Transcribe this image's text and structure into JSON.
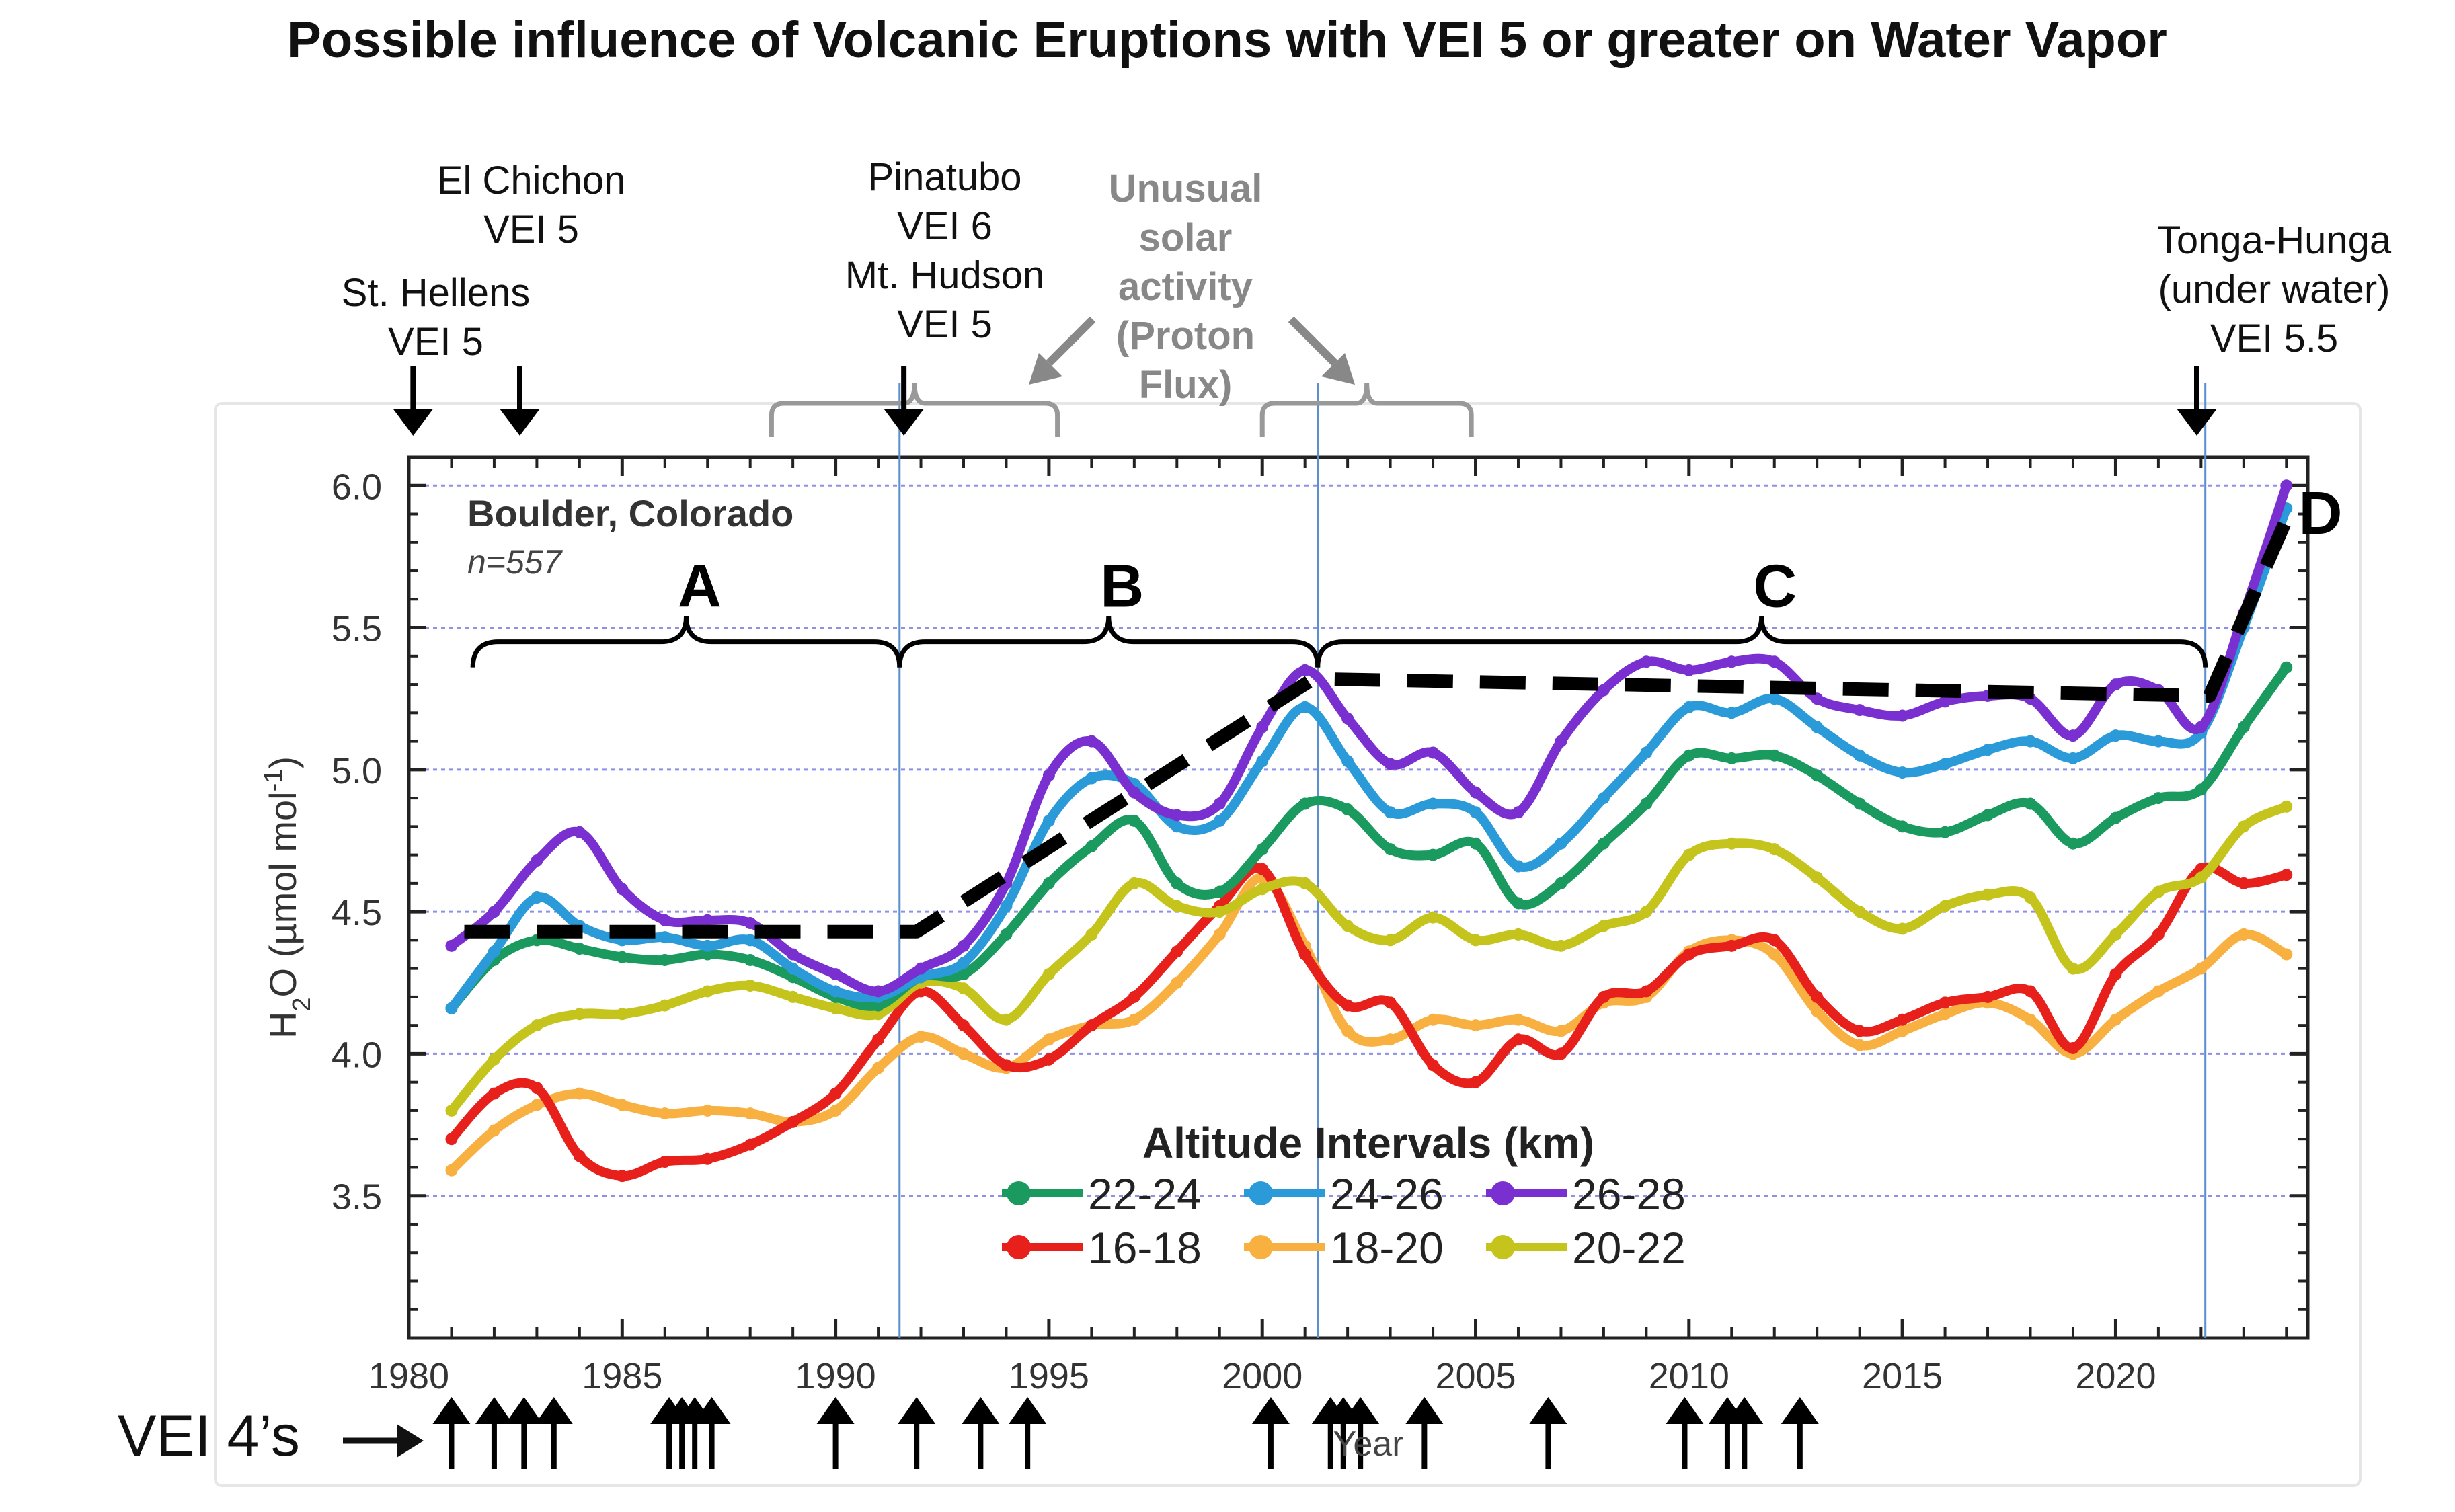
{
  "chart_data": {
    "type": "line",
    "title": "Possible influence of Volcanic Eruptions with VEI 5 or greater on Water Vapor",
    "station": "Boulder, Colorado",
    "n_label": "n=557",
    "xlabel": "Year",
    "ylabel_main": "H",
    "ylabel_sub": "2",
    "ylabel_rest": "O (µmol mol",
    "ylabel_sup": "-1",
    "ylabel_end": ")",
    "xlim": [
      1980,
      2024.5
    ],
    "ylim": [
      3.0,
      6.1
    ],
    "xticks": [
      1980,
      1985,
      1990,
      1995,
      2000,
      2005,
      2010,
      2015,
      2020
    ],
    "xtick_labels": [
      "1980",
      "1985",
      "1990",
      "1995",
      "2000",
      "2005",
      "2010",
      "2015",
      "2020"
    ],
    "yticks": [
      3.5,
      4.0,
      4.5,
      5.0,
      5.5,
      6.0
    ],
    "ytick_labels": [
      "3.5",
      "4.0",
      "4.5",
      "5.0",
      "5.5",
      "6.0"
    ],
    "legend_title": "Altitude Intervals (km)",
    "series": [
      {
        "name": "22-24",
        "color": "#1a9a5e",
        "x": [
          1981,
          1982,
          1983,
          1984,
          1985,
          1986,
          1987,
          1988,
          1989,
          1990,
          1991,
          1992,
          1993,
          1994,
          1995,
          1996,
          1997,
          1998,
          1999,
          2000,
          2001,
          2002,
          2003,
          2004,
          2005,
          2006,
          2007,
          2008,
          2009,
          2010,
          2011,
          2012,
          2013,
          2014,
          2015,
          2016,
          2017,
          2018,
          2019,
          2020,
          2021,
          2022,
          2023,
          2024
        ],
        "values": [
          4.16,
          4.33,
          4.4,
          4.37,
          4.34,
          4.33,
          4.35,
          4.33,
          4.27,
          4.2,
          4.17,
          4.27,
          4.28,
          4.42,
          4.6,
          4.73,
          4.82,
          4.6,
          4.57,
          4.72,
          4.88,
          4.86,
          4.72,
          4.7,
          4.74,
          4.53,
          4.6,
          4.74,
          4.88,
          5.05,
          5.04,
          5.05,
          4.98,
          4.88,
          4.8,
          4.78,
          4.84,
          4.88,
          4.74,
          4.83,
          4.9,
          4.93,
          5.15,
          5.36
        ]
      },
      {
        "name": "24-26",
        "color": "#2a9ad8",
        "x": [
          1981,
          1982,
          1983,
          1984,
          1985,
          1986,
          1987,
          1988,
          1989,
          1990,
          1991,
          1992,
          1993,
          1994,
          1995,
          1996,
          1997,
          1998,
          1999,
          2000,
          2001,
          2002,
          2003,
          2004,
          2005,
          2006,
          2007,
          2008,
          2009,
          2010,
          2011,
          2012,
          2013,
          2014,
          2015,
          2016,
          2017,
          2018,
          2019,
          2020,
          2021,
          2022,
          2023,
          2024
        ],
        "values": [
          4.16,
          4.36,
          4.55,
          4.45,
          4.4,
          4.41,
          4.38,
          4.4,
          4.3,
          4.22,
          4.2,
          4.27,
          4.32,
          4.52,
          4.82,
          4.97,
          4.95,
          4.8,
          4.82,
          5.03,
          5.22,
          5.03,
          4.85,
          4.88,
          4.85,
          4.66,
          4.74,
          4.9,
          5.06,
          5.22,
          5.2,
          5.25,
          5.15,
          5.05,
          4.99,
          5.02,
          5.07,
          5.1,
          5.04,
          5.12,
          5.1,
          5.13,
          5.5,
          5.92
        ]
      },
      {
        "name": "26-28",
        "color": "#7a2fd0",
        "x": [
          1981,
          1982,
          1983,
          1984,
          1985,
          1986,
          1987,
          1988,
          1989,
          1990,
          1991,
          1992,
          1993,
          1994,
          1995,
          1996,
          1997,
          1998,
          1999,
          2000,
          2001,
          2002,
          2003,
          2004,
          2005,
          2006,
          2007,
          2008,
          2009,
          2010,
          2011,
          2012,
          2013,
          2014,
          2015,
          2016,
          2017,
          2018,
          2019,
          2020,
          2021,
          2022,
          2023,
          2024
        ],
        "values": [
          4.38,
          4.5,
          4.68,
          4.78,
          4.58,
          4.47,
          4.47,
          4.46,
          4.35,
          4.28,
          4.22,
          4.3,
          4.38,
          4.6,
          4.98,
          5.1,
          4.92,
          4.84,
          4.88,
          5.15,
          5.35,
          5.18,
          5.02,
          5.06,
          4.92,
          4.85,
          5.1,
          5.28,
          5.38,
          5.35,
          5.38,
          5.38,
          5.25,
          5.21,
          5.19,
          5.24,
          5.26,
          5.25,
          5.12,
          5.3,
          5.28,
          5.15,
          5.55,
          6.0
        ]
      },
      {
        "name": "16-18",
        "color": "#e8201c",
        "x": [
          1981,
          1982,
          1983,
          1984,
          1985,
          1986,
          1987,
          1988,
          1989,
          1990,
          1991,
          1992,
          1993,
          1994,
          1995,
          1996,
          1997,
          1998,
          1999,
          2000,
          2001,
          2002,
          2003,
          2004,
          2005,
          2006,
          2007,
          2008,
          2009,
          2010,
          2011,
          2012,
          2013,
          2014,
          2015,
          2016,
          2017,
          2018,
          2019,
          2020,
          2021,
          2022,
          2023,
          2024
        ],
        "values": [
          3.7,
          3.86,
          3.88,
          3.64,
          3.57,
          3.62,
          3.63,
          3.68,
          3.76,
          3.86,
          4.05,
          4.22,
          4.1,
          3.96,
          3.98,
          4.1,
          4.2,
          4.36,
          4.52,
          4.65,
          4.35,
          4.17,
          4.18,
          3.96,
          3.9,
          4.05,
          4.0,
          4.2,
          4.22,
          4.35,
          4.38,
          4.4,
          4.2,
          4.08,
          4.12,
          4.18,
          4.2,
          4.22,
          4.02,
          4.28,
          4.42,
          4.65,
          4.6,
          4.63
        ]
      },
      {
        "name": "18-20",
        "color": "#f8b040",
        "x": [
          1981,
          1982,
          1983,
          1984,
          1985,
          1986,
          1987,
          1988,
          1989,
          1990,
          1991,
          1992,
          1993,
          1994,
          1995,
          1996,
          1997,
          1998,
          1999,
          2000,
          2001,
          2002,
          2003,
          2004,
          2005,
          2006,
          2007,
          2008,
          2009,
          2010,
          2011,
          2012,
          2013,
          2014,
          2015,
          2016,
          2017,
          2018,
          2019,
          2020,
          2021,
          2022,
          2023,
          2024
        ],
        "values": [
          3.59,
          3.73,
          3.82,
          3.86,
          3.82,
          3.79,
          3.8,
          3.79,
          3.76,
          3.8,
          3.95,
          4.06,
          4.0,
          3.95,
          4.05,
          4.1,
          4.12,
          4.25,
          4.42,
          4.62,
          4.38,
          4.08,
          4.05,
          4.12,
          4.1,
          4.12,
          4.08,
          4.18,
          4.2,
          4.36,
          4.4,
          4.35,
          4.15,
          4.03,
          4.08,
          4.14,
          4.18,
          4.12,
          4.0,
          4.12,
          4.22,
          4.3,
          4.42,
          4.35
        ]
      },
      {
        "name": "20-22",
        "color": "#c4c41c",
        "x": [
          1981,
          1982,
          1983,
          1984,
          1985,
          1986,
          1987,
          1988,
          1989,
          1990,
          1991,
          1992,
          1993,
          1994,
          1995,
          1996,
          1997,
          1998,
          1999,
          2000,
          2001,
          2002,
          2003,
          2004,
          2005,
          2006,
          2007,
          2008,
          2009,
          2010,
          2011,
          2012,
          2013,
          2014,
          2015,
          2016,
          2017,
          2018,
          2019,
          2020,
          2021,
          2022,
          2023,
          2024
        ],
        "values": [
          3.8,
          3.98,
          4.1,
          4.14,
          4.14,
          4.17,
          4.22,
          4.24,
          4.2,
          4.16,
          4.14,
          4.25,
          4.23,
          4.12,
          4.28,
          4.42,
          4.6,
          4.52,
          4.5,
          4.58,
          4.6,
          4.45,
          4.4,
          4.48,
          4.4,
          4.42,
          4.38,
          4.45,
          4.5,
          4.7,
          4.74,
          4.72,
          4.62,
          4.5,
          4.44,
          4.52,
          4.56,
          4.55,
          4.3,
          4.42,
          4.57,
          4.62,
          4.8,
          4.87
        ]
      }
    ],
    "trend_line": {
      "style": "dashed",
      "x": [
        1981.3,
        1991.9,
        2001.2,
        2022.2,
        2024.2
      ],
      "values": [
        4.43,
        4.43,
        5.32,
        5.26,
        5.95
      ]
    },
    "vertical_lines_x": [
      1991.5,
      2001.3,
      2022.1
    ],
    "periods": [
      {
        "label": "A",
        "x_start": 1981.5,
        "x_end": 1991.5,
        "y": 5.45
      },
      {
        "label": "B",
        "x_start": 1991.5,
        "x_end": 2001.3,
        "y": 5.45
      },
      {
        "label": "C",
        "x_start": 2001.3,
        "x_end": 2022.1,
        "y": 5.45
      },
      {
        "label": "D",
        "x": 2024.8,
        "y": 5.83
      }
    ],
    "vei5_eruptions": [
      {
        "lines": [
          "St. Hellens",
          "VEI 5"
        ],
        "x": 1980.1
      },
      {
        "lines": [
          "El Chichon",
          "VEI 5"
        ],
        "x": 1982.6
      },
      {
        "lines": [
          "Pinatubo",
          "VEI 6",
          "Mt. Hudson",
          "VEI 5"
        ],
        "x": 1991.6
      },
      {
        "lines": [
          "Tonga-Hunga",
          "(under water)",
          "VEI 5.5"
        ],
        "x": 2021.9
      }
    ],
    "solar_note": {
      "lines": [
        "Unusual",
        "solar",
        "activity",
        "(Proton",
        "Flux)"
      ],
      "brackets": [
        {
          "x_start": 1988.5,
          "x_end": 1995.2
        },
        {
          "x_start": 2000.0,
          "x_end": 2004.9
        }
      ]
    },
    "vei4_label": "VEI 4’s",
    "vei4_arrows_x": [
      1981.0,
      1982.0,
      1982.7,
      1983.4,
      1986.1,
      1986.4,
      1986.7,
      1987.1,
      1990.0,
      1991.9,
      1993.4,
      1994.5,
      2000.2,
      2001.6,
      2001.9,
      2002.3,
      2003.8,
      2006.7,
      2009.9,
      2010.9,
      2011.3,
      2012.6
    ]
  }
}
